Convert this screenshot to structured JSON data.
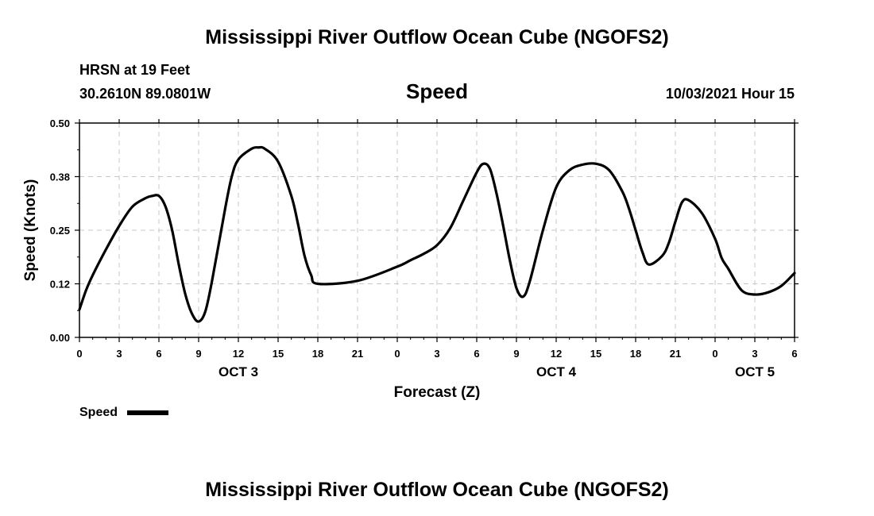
{
  "chart_data": {
    "type": "line",
    "title": "Mississippi River Outflow Ocean Cube (NGOFS2)",
    "footer_title": "Mississippi River Outflow Ocean Cube (NGOFS2)",
    "subtitle": "Speed",
    "station": "HRSN at 19 Feet",
    "location": "30.2610N  89.0801W",
    "timestamp": "10/03/2021 Hour 15",
    "xlabel": "Forecast (Z)",
    "ylabel": "Speed (Knots)",
    "xlim": [
      0,
      54
    ],
    "ylim": [
      0,
      0.5
    ],
    "grid": true,
    "y_ticks": [
      0.0,
      0.125,
      0.25,
      0.375,
      0.5
    ],
    "y_tick_labels": [
      "0.00",
      "0.12",
      "0.25",
      "0.38",
      "0.50"
    ],
    "x_ticks": [
      0,
      3,
      6,
      9,
      12,
      15,
      18,
      21,
      24,
      27,
      30,
      33,
      36,
      39,
      42,
      45,
      48,
      51,
      54
    ],
    "x_tick_labels": [
      "0",
      "3",
      "6",
      "9",
      "12",
      "15",
      "18",
      "21",
      "0",
      "3",
      "6",
      "9",
      "12",
      "15",
      "18",
      "21",
      "0",
      "3",
      "6"
    ],
    "day_labels": [
      {
        "x": 12,
        "label": "OCT 3"
      },
      {
        "x": 36,
        "label": "OCT 4"
      },
      {
        "x": 51,
        "label": "OCT 5"
      }
    ],
    "legend": "Speed",
    "series": [
      {
        "name": "Speed",
        "color": "#000000",
        "x": [
          0,
          0.5,
          1,
          2,
          3,
          4,
          5,
          5.5,
          6,
          6.5,
          7,
          7.5,
          8,
          8.5,
          9,
          9.5,
          10,
          11,
          11.5,
          12,
          13,
          13.5,
          14,
          15,
          16,
          16.5,
          17,
          17.5,
          18,
          21,
          24,
          25,
          26,
          27,
          28,
          29,
          30,
          30.5,
          31,
          31.5,
          32,
          32.5,
          33,
          33.5,
          34,
          35,
          36,
          37,
          38,
          39,
          40,
          41,
          41.5,
          42,
          42.5,
          43,
          44,
          44.5,
          45,
          45.5,
          46,
          47,
          48,
          48.5,
          49,
          50,
          51,
          52,
          53,
          54
        ],
        "values": [
          0.065,
          0.11,
          0.145,
          0.205,
          0.26,
          0.305,
          0.325,
          0.33,
          0.33,
          0.305,
          0.25,
          0.17,
          0.1,
          0.055,
          0.037,
          0.06,
          0.13,
          0.3,
          0.375,
          0.415,
          0.44,
          0.443,
          0.44,
          0.41,
          0.33,
          0.265,
          0.19,
          0.145,
          0.125,
          0.132,
          0.165,
          0.18,
          0.195,
          0.215,
          0.255,
          0.32,
          0.385,
          0.405,
          0.393,
          0.335,
          0.26,
          0.18,
          0.115,
          0.095,
          0.13,
          0.25,
          0.35,
          0.39,
          0.403,
          0.405,
          0.39,
          0.34,
          0.3,
          0.25,
          0.2,
          0.17,
          0.19,
          0.22,
          0.27,
          0.315,
          0.32,
          0.29,
          0.23,
          0.185,
          0.16,
          0.11,
          0.1,
          0.105,
          0.12,
          0.15
        ]
      }
    ]
  }
}
